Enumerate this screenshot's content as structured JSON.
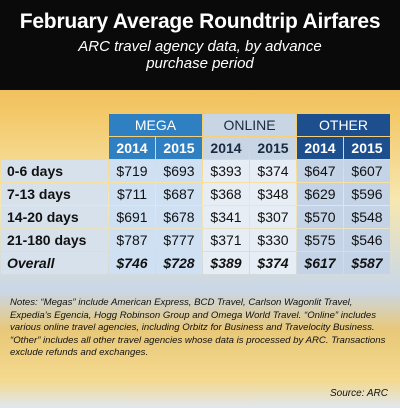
{
  "header": {
    "title": "February Average Roundtrip Airfares",
    "subtitle": "ARC travel agency data, by advance purchase period"
  },
  "table": {
    "groups": [
      "MEGA",
      "ONLINE",
      "OTHER"
    ],
    "years": [
      "2014",
      "2015",
      "2014",
      "2015",
      "2014",
      "2015"
    ],
    "rows": [
      [
        "0-6 days",
        "$719",
        "$693",
        "$393",
        "$374",
        "$647",
        "$607"
      ],
      [
        "7-13 days",
        "$711",
        "$687",
        "$368",
        "$348",
        "$629",
        "$596"
      ],
      [
        "14-20 days",
        "$691",
        "$678",
        "$341",
        "$307",
        "$570",
        "$548"
      ],
      [
        "21-180 days",
        "$787",
        "$777",
        "$371",
        "$330",
        "$575",
        "$546"
      ],
      [
        "Overall",
        "$746",
        "$728",
        "$389",
        "$374",
        "$617",
        "$587"
      ]
    ]
  },
  "notes": "Notes: “Megas” include American Express, BCD Travel, Carlson Wagonlit Travel, Expedia’s Egencia, Hogg Robinson Group and Omega World Travel. “Online” includes various online travel agencies, including Orbitz for Business and Travelocity Business. “Other” includes all other travel agencies whose data is processed by ARC. Transactions exclude refunds and exchanges.",
  "source": "Source: ARC"
}
